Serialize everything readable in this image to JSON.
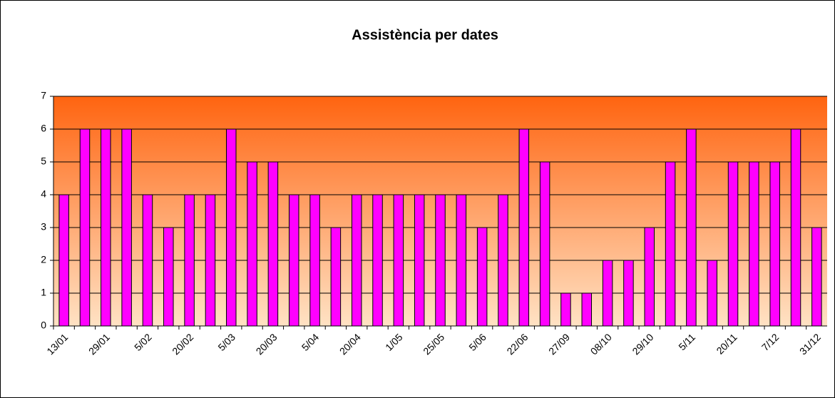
{
  "chart_data": {
    "type": "bar",
    "title": "Assistència per dates",
    "categories": [
      "13/01",
      null,
      "29/01",
      null,
      "5/02",
      null,
      "20/02",
      null,
      "5/03",
      null,
      "20/03",
      null,
      "5/04",
      null,
      "20/04",
      null,
      "1/05",
      null,
      "25/05",
      null,
      "5/06",
      null,
      "22/06",
      null,
      "27/09",
      null,
      "08/10",
      null,
      "29/10",
      null,
      "5/11",
      null,
      "20/11",
      null,
      "7/12",
      null,
      "31/12"
    ],
    "values": [
      4,
      6,
      6,
      6,
      4,
      3,
      4,
      4,
      6,
      5,
      5,
      4,
      4,
      3,
      4,
      4,
      4,
      4,
      4,
      4,
      3,
      4,
      6,
      5,
      1,
      1,
      2,
      2,
      3,
      5,
      6,
      2,
      5,
      5,
      5,
      6,
      3
    ],
    "color": "#ff00ff",
    "ylim": [
      0,
      7
    ],
    "yticks": [
      0,
      1,
      2,
      3,
      4,
      5,
      6,
      7
    ],
    "grid": true
  }
}
